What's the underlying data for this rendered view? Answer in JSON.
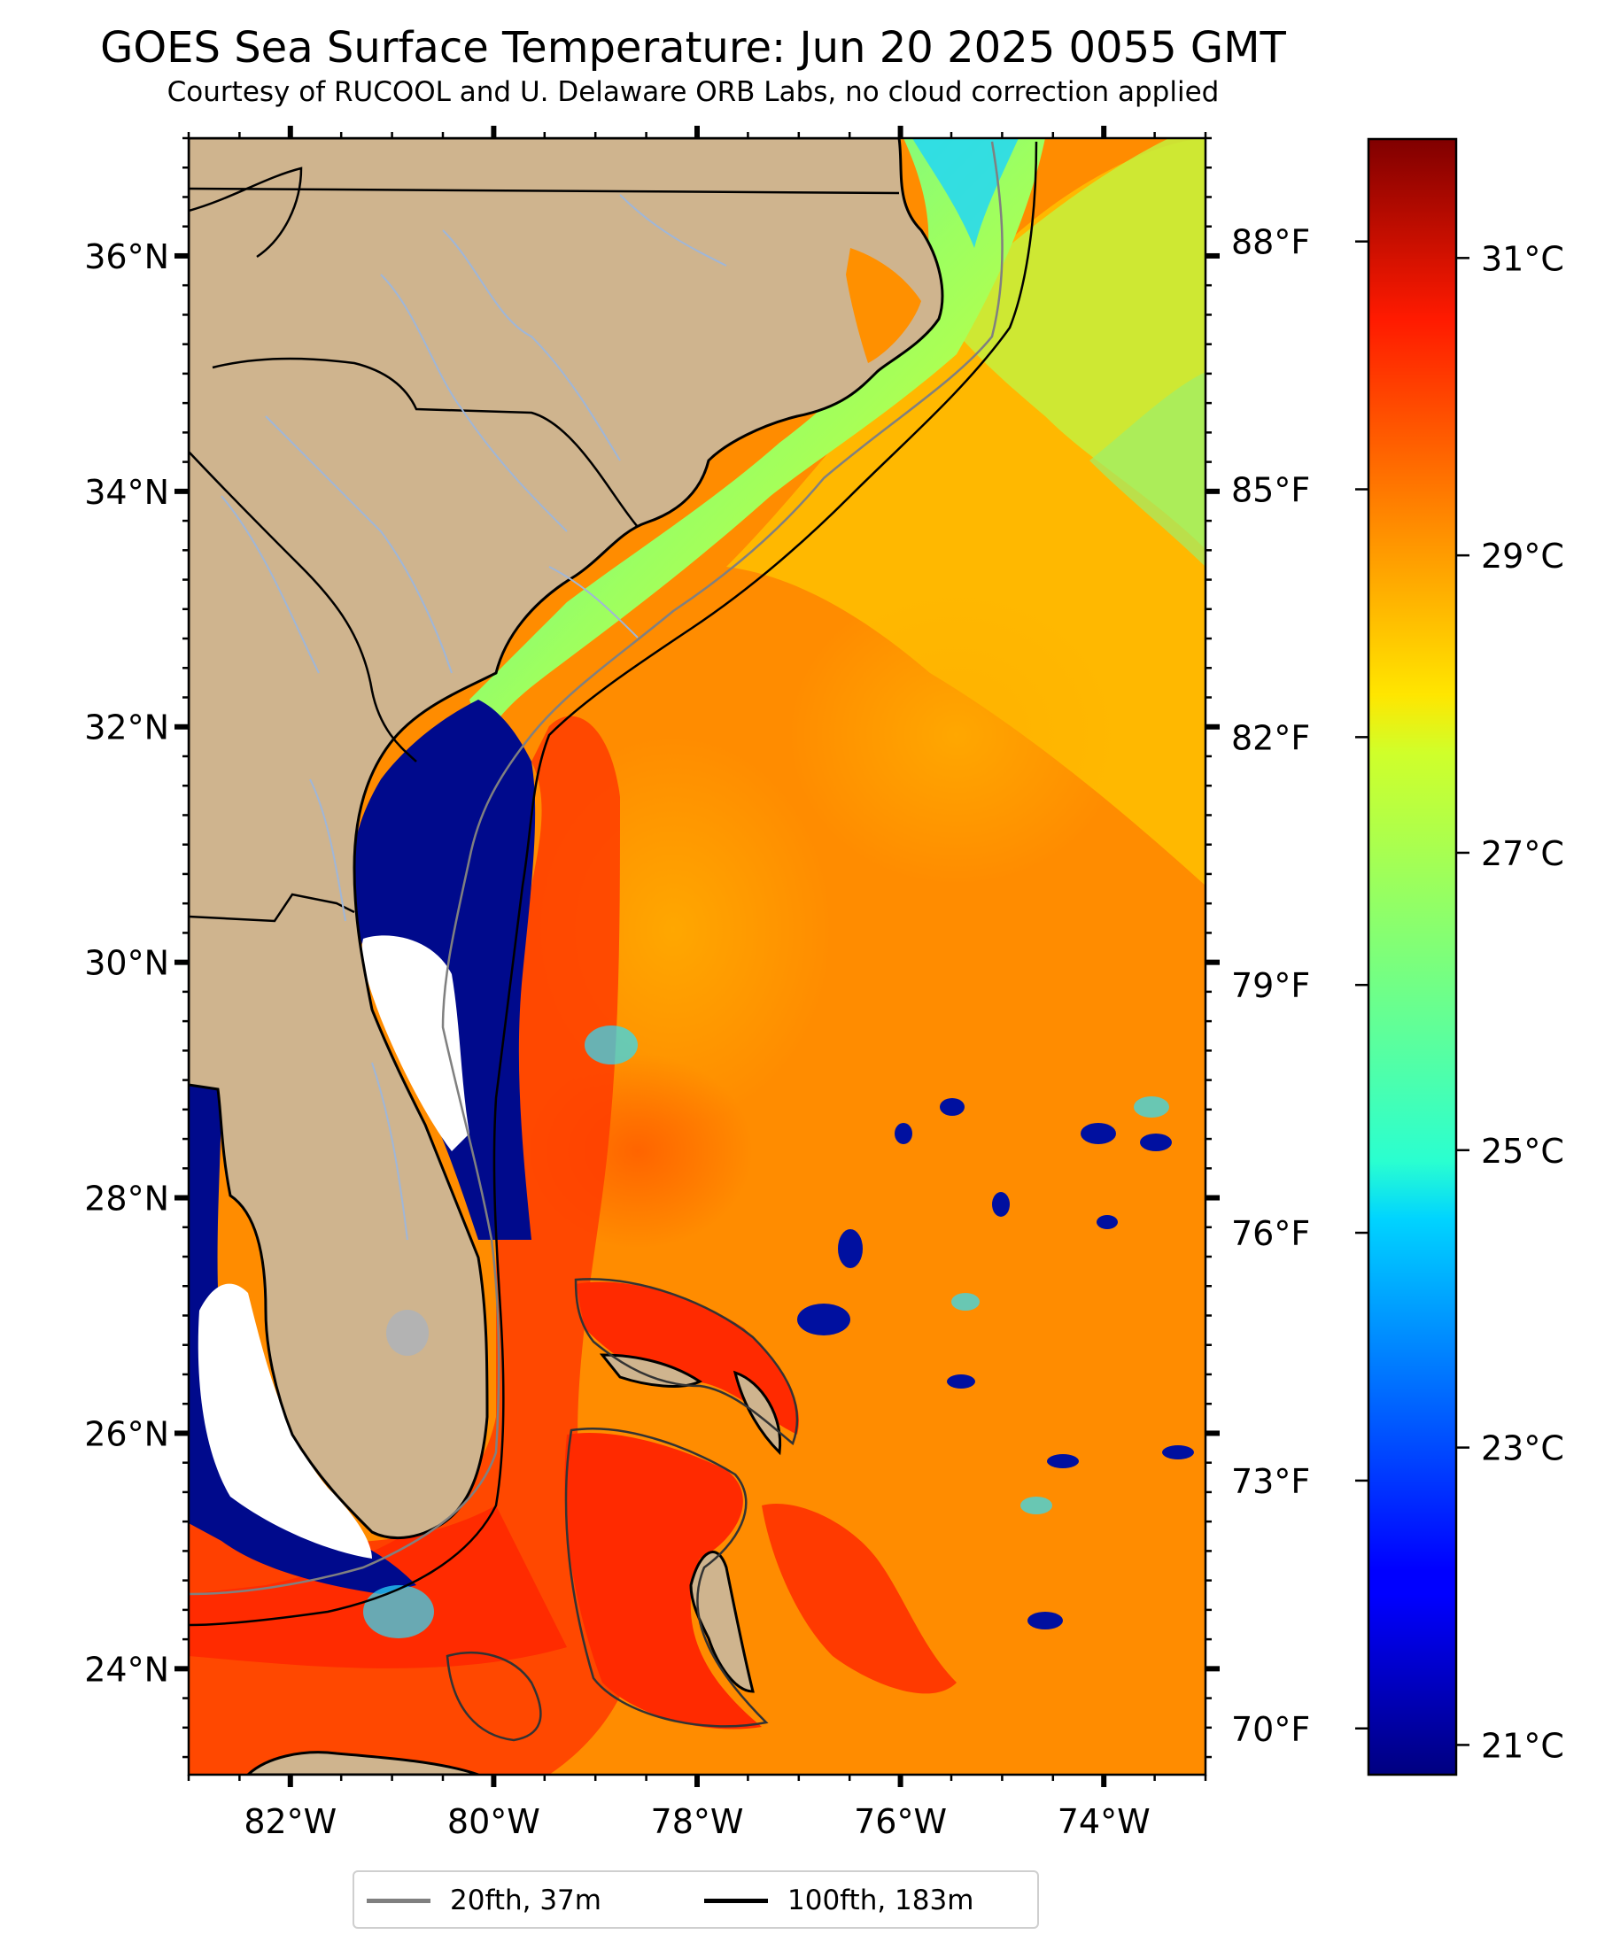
{
  "title": "GOES Sea Surface Temperature: Jun 20 2025 0055 GMT",
  "subtitle": "Courtesy of RUCOOL and U. Delaware ORB Labs, no cloud correction applied",
  "map": {
    "lon_range": [
      -83.0,
      -73.0
    ],
    "lat_range": [
      23.1,
      37.0
    ],
    "land_color": "#cfb48e",
    "cloud_color": "#ffffff",
    "lon_ticks": [
      "82°W",
      "80°W",
      "78°W",
      "76°W",
      "74°W"
    ],
    "lat_ticks": [
      "36°N",
      "34°N",
      "32°N",
      "30°N",
      "28°N",
      "26°N",
      "24°N"
    ],
    "fahrenheit_ticks": [
      "88°F",
      "85°F",
      "82°F",
      "79°F",
      "76°F",
      "73°F",
      "70°F"
    ]
  },
  "colorbar": {
    "range_c": [
      20.8,
      31.8
    ],
    "ticks": [
      "31°C",
      "29°C",
      "27°C",
      "25°C",
      "23°C",
      "21°C"
    ],
    "colormap": "jet"
  },
  "legend": {
    "items": [
      {
        "label": "20fth, 37m",
        "color": "#808080"
      },
      {
        "label": "100fth, 183m",
        "color": "#000000"
      }
    ]
  }
}
